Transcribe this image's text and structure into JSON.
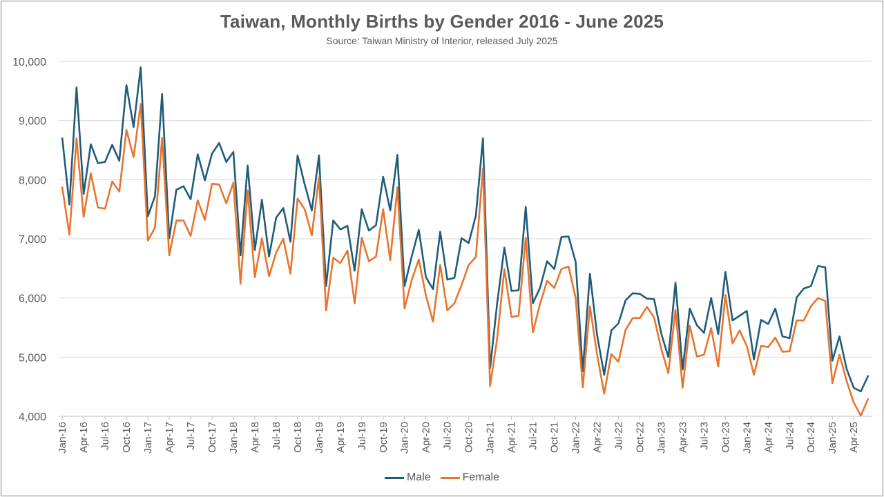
{
  "chart_data": {
    "type": "line",
    "title": "Taiwan, Monthly Births by Gender 2016 - June 2025",
    "subtitle": "Source: Taiwan Ministry of Interior, released July 2025",
    "ylim": [
      4000,
      10000
    ],
    "y_ticks": [
      4000,
      5000,
      6000,
      7000,
      8000,
      9000,
      10000
    ],
    "y_tick_labels": [
      "4,000",
      "5,000",
      "6,000",
      "7,000",
      "8,000",
      "9,000",
      "10,000"
    ],
    "x_tick_labels": [
      "Jan-16",
      "Apr-16",
      "Jul-16",
      "Oct-16",
      "Jan-17",
      "Apr-17",
      "Jul-17",
      "Oct-17",
      "Jan-18",
      "Apr-18",
      "Jul-18",
      "Oct-18",
      "Jan-19",
      "Apr-19",
      "Jul-19",
      "Oct-19",
      "Jan-20",
      "Apr-20",
      "Jul-20",
      "Oct-20",
      "Jan-21",
      "Apr-21",
      "Jul-21",
      "Oct-21",
      "Jan-22",
      "Apr-22",
      "Jul-22",
      "Oct-22",
      "Jan-23",
      "Apr-23",
      "Jul-23",
      "Oct-23",
      "Jan-24",
      "Apr-24",
      "Jul-24",
      "Oct-24",
      "Jan-25",
      "Apr-25"
    ],
    "x_start": "2016-01",
    "x_end": "2025-06",
    "grid": true,
    "legend_position": "bottom",
    "series": [
      {
        "name": "Male",
        "color": "#1f5c7a",
        "values": [
          8700,
          7580,
          9560,
          7760,
          8600,
          8280,
          8300,
          8590,
          8320,
          9600,
          8890,
          9900,
          7380,
          7720,
          9450,
          7010,
          7830,
          7890,
          7670,
          8430,
          7990,
          8440,
          8620,
          8300,
          8470,
          6720,
          8240,
          6810,
          7660,
          6700,
          7360,
          7520,
          6950,
          8410,
          7920,
          7480,
          8410,
          6200,
          7310,
          7160,
          7220,
          6460,
          7500,
          7140,
          7230,
          8050,
          7480,
          8420,
          6200,
          6700,
          7150,
          6350,
          6150,
          7120,
          6310,
          6340,
          7010,
          6930,
          7390,
          8700,
          4810,
          5920,
          6850,
          6120,
          6130,
          7540,
          5910,
          6170,
          6620,
          6490,
          7030,
          7040,
          6610,
          4760,
          6410,
          5380,
          4700,
          5450,
          5570,
          5960,
          6080,
          6070,
          5990,
          5980,
          5400,
          5000,
          6260,
          4790,
          5820,
          5540,
          5410,
          6000,
          5390,
          6440,
          5620,
          5700,
          5780,
          4960,
          5630,
          5560,
          5820,
          5350,
          5320,
          6010,
          6160,
          6200,
          6540,
          6520,
          4940,
          5350,
          4800,
          4480,
          4420,
          4680
        ]
      },
      {
        "name": "Female",
        "color": "#e8742e",
        "values": [
          7870,
          7070,
          8700,
          7370,
          8110,
          7530,
          7510,
          7970,
          7800,
          8840,
          8380,
          9280,
          6970,
          7190,
          8710,
          6720,
          7310,
          7310,
          7050,
          7650,
          7320,
          7930,
          7920,
          7600,
          7950,
          6240,
          7820,
          6350,
          7010,
          6370,
          6770,
          7000,
          6410,
          7680,
          7500,
          7060,
          8040,
          5790,
          6680,
          6590,
          6800,
          5910,
          7020,
          6620,
          6700,
          7500,
          6640,
          7870,
          5820,
          6300,
          6650,
          6040,
          5600,
          6560,
          5790,
          5910,
          6220,
          6560,
          6690,
          8190,
          4510,
          5320,
          6490,
          5680,
          5700,
          7020,
          5420,
          5900,
          6290,
          6170,
          6490,
          6530,
          6000,
          4490,
          5860,
          5050,
          4380,
          5050,
          4920,
          5460,
          5660,
          5660,
          5850,
          5670,
          5140,
          4730,
          5800,
          4480,
          5530,
          5010,
          5040,
          5490,
          4840,
          6050,
          5230,
          5450,
          5190,
          4700,
          5190,
          5170,
          5330,
          5090,
          5100,
          5620,
          5620,
          5860,
          6000,
          5950,
          4560,
          5040,
          4600,
          4230,
          4010,
          4290
        ]
      }
    ]
  }
}
